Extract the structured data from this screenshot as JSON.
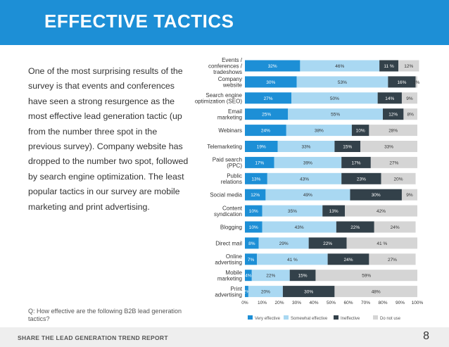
{
  "header": {
    "title": "EFFECTIVE TACTICS"
  },
  "body_text": "One of the most surprising results of the survey is that events and conferences have seen a strong resurgence as the most effective lead generation tactic (up from the number three spot in the previous survey). Company website has dropped to the number two spot, followed by search engine optimization. The least popular tactics in our survey are mobile marketing and print advertising.",
  "question": "Q: How effective are the following B2B lead generation tactics?",
  "footer": {
    "report_title": "SHARE THE LEAD GENERATION TREND REPORT",
    "page_number": "8"
  },
  "colors": {
    "very_effective": "#1d8fd6",
    "somewhat_effective": "#a9d8f2",
    "ineffective": "#33414a",
    "do_not_use": "#d5d5d5",
    "header": "#1d8fd6"
  },
  "chart_data": {
    "type": "bar",
    "orientation": "horizontal",
    "stacked": true,
    "categories": [
      [
        "Events /",
        "conferences /",
        "tradeshows"
      ],
      [
        "Company",
        "website"
      ],
      [
        "Search engine",
        "optimization (SEO)"
      ],
      [
        "Email",
        "marketing"
      ],
      [
        "Webinars"
      ],
      [
        "Telemarketing"
      ],
      [
        "Paid search",
        "(PPC)"
      ],
      [
        "Public",
        "relations"
      ],
      [
        "Social media"
      ],
      [
        "Content",
        "syndication"
      ],
      [
        "Blogging"
      ],
      [
        "Direct mail"
      ],
      [
        "Online",
        "advertising"
      ],
      [
        "Mobile",
        "marketing"
      ],
      [
        "Print",
        "advertising"
      ]
    ],
    "series": [
      {
        "name": "Very effective",
        "values": [
          32,
          30,
          27,
          25,
          24,
          19,
          17,
          13,
          12,
          10,
          10,
          8,
          7,
          4,
          2
        ],
        "labels": [
          "32%",
          "30%",
          "27%",
          "25%",
          "24%",
          "19%",
          "17%",
          "13%",
          "12%",
          "10%",
          "10%",
          "8%",
          "7%",
          "4%",
          "2%"
        ]
      },
      {
        "name": "Somewhat effective",
        "values": [
          46,
          53,
          50,
          55,
          38,
          33,
          39,
          43,
          49,
          35,
          43,
          29,
          41,
          22,
          20
        ],
        "labels": [
          "46%",
          "53%",
          "50%",
          "55%",
          "38%",
          "33%",
          "39%",
          "43%",
          "49%",
          "35%",
          "43%",
          "29%",
          "41 %",
          "22%",
          "20%"
        ]
      },
      {
        "name": "Ineffective",
        "values": [
          11,
          16,
          14,
          12,
          10,
          15,
          17,
          23,
          30,
          13,
          22,
          22,
          24,
          15,
          30
        ],
        "labels": [
          "11 %",
          "16%",
          "14%",
          "12%",
          "10%",
          "15%",
          "17%",
          "23%",
          "30%",
          "13%",
          "22%",
          "22%",
          "24%",
          "15%",
          "30%"
        ]
      },
      {
        "name": "Do not use",
        "values": [
          12,
          1,
          9,
          8,
          28,
          33,
          27,
          20,
          9,
          42,
          24,
          41,
          27,
          59,
          48
        ],
        "labels": [
          "12%",
          "1%",
          "9%",
          "8%",
          "28%",
          "33%",
          "27%",
          "20%",
          "9%",
          "42%",
          "24%",
          "41 %",
          "27%",
          "59%",
          "48%"
        ]
      }
    ],
    "x_ticks": [
      "0%",
      "10%",
      "20%",
      "30%",
      "40%",
      "50%",
      "60%",
      "70%",
      "80%",
      "90%",
      "100%"
    ],
    "xlim": [
      0,
      100
    ],
    "legend": "bottom",
    "grid": false
  }
}
